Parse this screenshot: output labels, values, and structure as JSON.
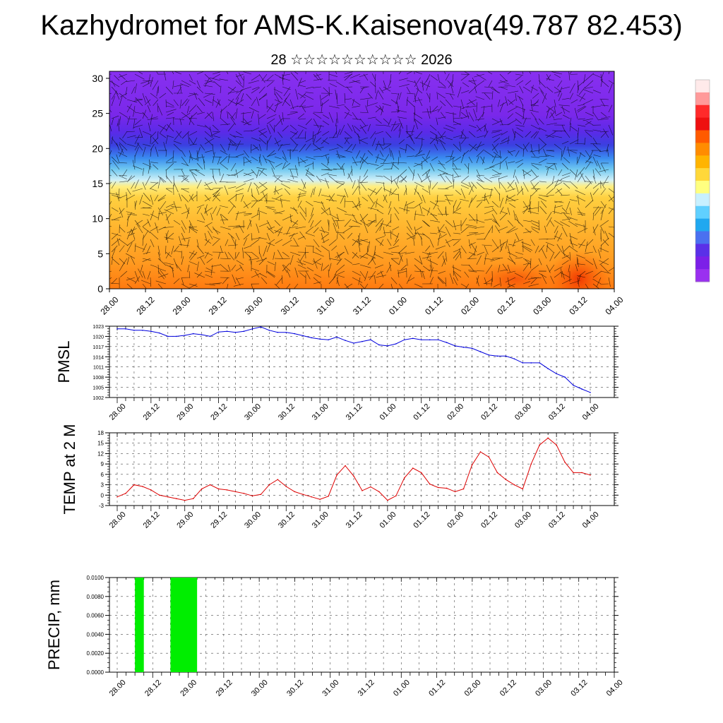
{
  "title": "Kazhydromet for AMS-K.Kaisenova(49.787 82.453)",
  "subtitle": "28 ☆☆☆☆☆☆☆☆☆☆ 2026",
  "colors": {
    "pmsl_line": "#0000dd",
    "temp_line": "#dd0000",
    "precip_bar": "#00ee00",
    "grid": "#000000"
  },
  "chart_data": [
    {
      "type": "heatmap",
      "name": "cross-section",
      "ylim": [
        0,
        31
      ],
      "yticks": [
        0,
        5,
        10,
        15,
        20,
        25,
        30
      ],
      "xticks": [
        "28.00",
        "28.12",
        "29.00",
        "29.12",
        "30.00",
        "30.12",
        "31.00",
        "31.12",
        "01.00",
        "01.12",
        "02.00",
        "02.12",
        "03.00",
        "03.12",
        "04.00"
      ],
      "colorbar": [
        "#ffeaea",
        "#ff9a9a",
        "#ff2a2a",
        "#ee1010",
        "#ff5a00",
        "#ff8c00",
        "#ffb400",
        "#ffd83a",
        "#ffff80",
        "#c8f0ff",
        "#60d0ff",
        "#20a8f0",
        "#4a70f0",
        "#5a30e8",
        "#7c20e8",
        "#9a30f0"
      ]
    },
    {
      "type": "line",
      "name": "PMSL",
      "ylabel": "PMSL",
      "ylim": [
        1002,
        1023
      ],
      "yticks": [
        1002,
        1005,
        1008,
        1011,
        1014,
        1017,
        1020,
        1023
      ],
      "xticks": [
        "28.00",
        "28.12",
        "29.00",
        "29.12",
        "30.00",
        "30.12",
        "31.00",
        "31.12",
        "01.00",
        "01.12",
        "02.00",
        "02.12",
        "03.00",
        "03.12",
        "04.00"
      ],
      "x": [
        0,
        3,
        6,
        9,
        12,
        15,
        18,
        21,
        24,
        27,
        30,
        33,
        36,
        39,
        42,
        45,
        48,
        51,
        54,
        57,
        60,
        63,
        66,
        69,
        72,
        75,
        78,
        81,
        84,
        87,
        90,
        93,
        96,
        99,
        102,
        105,
        108,
        111,
        114,
        117,
        120,
        123,
        126,
        129,
        132,
        135,
        138,
        141,
        144,
        147,
        150,
        153,
        156,
        159,
        162,
        165,
        168
      ],
      "values": [
        1022.2,
        1022.2,
        1021.8,
        1021.8,
        1021.5,
        1021.0,
        1020.0,
        1020.0,
        1020.3,
        1020.8,
        1020.5,
        1020.0,
        1021.3,
        1021.5,
        1021.2,
        1021.5,
        1022.2,
        1022.8,
        1021.8,
        1021.2,
        1021.2,
        1020.8,
        1020.2,
        1019.6,
        1019.2,
        1019.0,
        1019.8,
        1018.8,
        1018.0,
        1018.5,
        1019.0,
        1017.5,
        1017.2,
        1017.8,
        1019.0,
        1019.4,
        1019.0,
        1019.0,
        1019.0,
        1018.2,
        1017.2,
        1016.8,
        1016.5,
        1015.5,
        1014.5,
        1014.2,
        1014.2,
        1013.4,
        1012.2,
        1012.2,
        1012.2,
        1010.5,
        1009.0,
        1008.0,
        1005.6,
        1004.5,
        1003.5
      ]
    },
    {
      "type": "line",
      "name": "TEMP",
      "ylabel": "TEMP at 2 M",
      "ylim": [
        -3,
        18
      ],
      "yticks": [
        -3,
        0,
        3,
        6,
        9,
        12,
        15,
        18
      ],
      "xticks": [
        "28.00",
        "28.12",
        "29.00",
        "29.12",
        "30.00",
        "30.12",
        "31.00",
        "31.12",
        "01.00",
        "01.12",
        "02.00",
        "02.12",
        "03.00",
        "03.12",
        "04.00"
      ],
      "x": [
        0,
        3,
        6,
        9,
        12,
        15,
        18,
        21,
        24,
        27,
        30,
        33,
        36,
        39,
        42,
        45,
        48,
        51,
        54,
        57,
        60,
        63,
        66,
        69,
        72,
        75,
        78,
        81,
        84,
        87,
        90,
        93,
        96,
        99,
        102,
        105,
        108,
        111,
        114,
        117,
        120,
        123,
        126,
        129,
        132,
        135,
        138,
        141,
        144,
        147,
        150,
        153,
        156,
        159,
        162,
        165,
        168
      ],
      "values": [
        -0.5,
        0.5,
        3.0,
        2.5,
        1.5,
        0.0,
        -0.5,
        -1.0,
        -1.5,
        -1.0,
        1.8,
        3.0,
        1.8,
        1.5,
        1.0,
        0.5,
        -0.2,
        0.2,
        3.0,
        4.5,
        2.5,
        1.0,
        0.2,
        -0.5,
        -1.2,
        -0.3,
        5.8,
        8.5,
        5.5,
        1.3,
        2.4,
        1.0,
        -1.5,
        -0.2,
        5.0,
        7.8,
        6.5,
        3.2,
        2.2,
        2.0,
        1.0,
        1.8,
        8.7,
        12.5,
        11.0,
        6.5,
        4.5,
        3.0,
        1.8,
        9.0,
        14.5,
        16.5,
        14.5,
        9.5,
        6.5,
        6.5,
        5.8
      ]
    },
    {
      "type": "bar",
      "name": "PRECIP",
      "ylabel": "PRECIP, mm",
      "ylim": [
        0,
        0.01
      ],
      "yticks": [
        "0.0000",
        "0.0020",
        "0.0040",
        "0.0060",
        "0.0080",
        "0.0100"
      ],
      "xticks": [
        "28.00",
        "28.12",
        "29.00",
        "29.12",
        "30.00",
        "30.12",
        "31.00",
        "31.12",
        "01.00",
        "01.12",
        "02.00",
        "02.12",
        "03.00",
        "03.12",
        "04.00"
      ],
      "bars": [
        {
          "x_start": 6,
          "x_end": 9,
          "value": 0.01
        },
        {
          "x_start": 18,
          "x_end": 27,
          "value": 0.01
        }
      ]
    }
  ]
}
